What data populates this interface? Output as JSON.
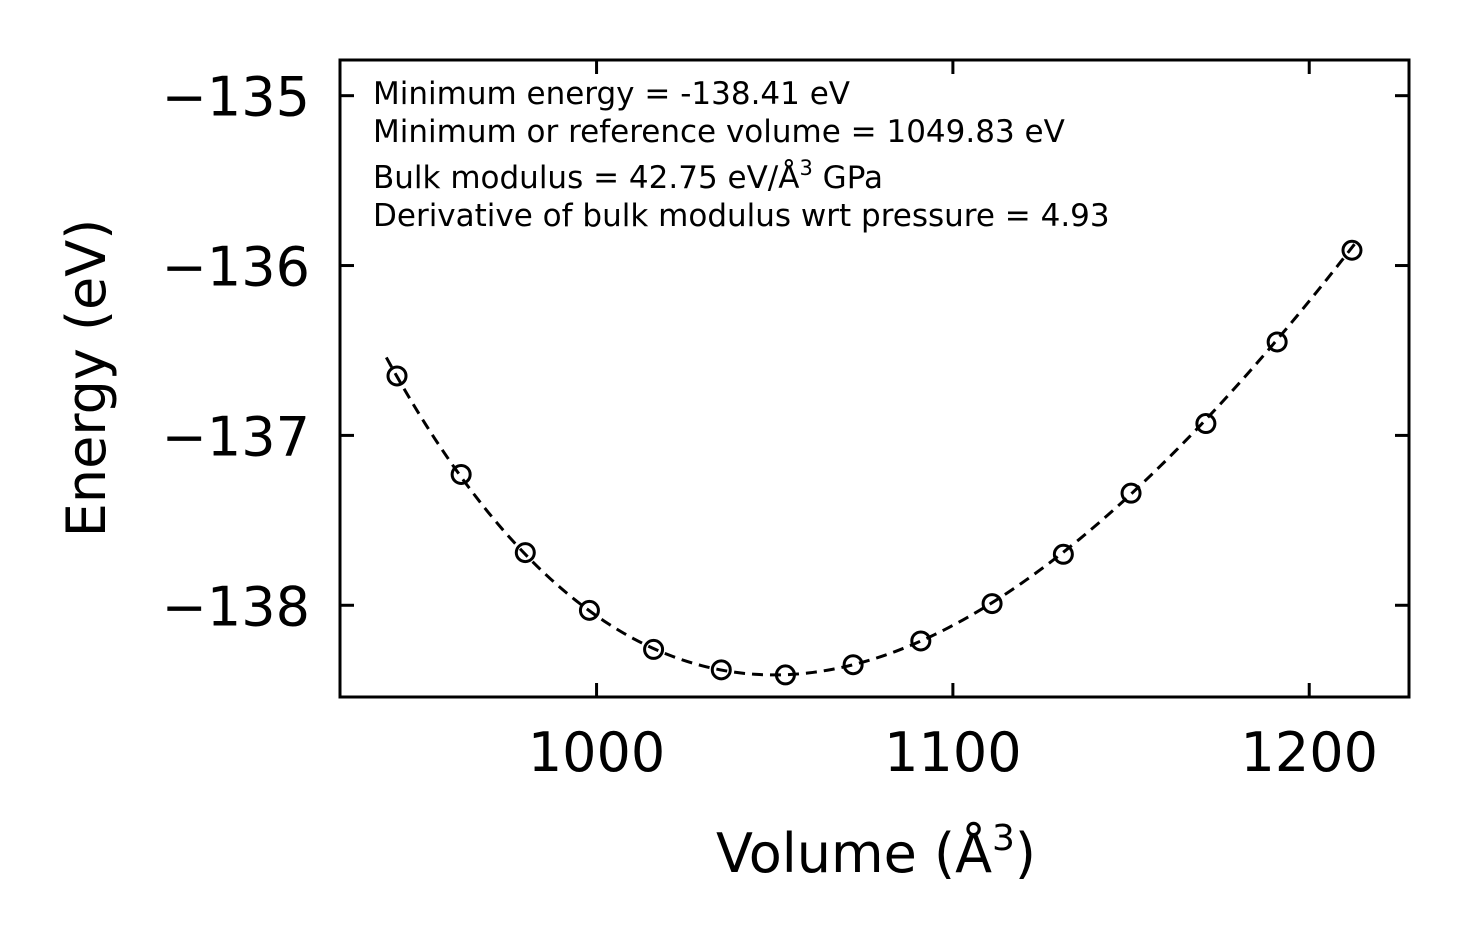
{
  "chart_data": {
    "type": "scatter",
    "title": "",
    "xlabel": "Volume (Å",
    "xlabel_sup": "3",
    "xlabel_end": ")",
    "ylabel": "Energy (eV)",
    "xlim": [
      928,
      1228
    ],
    "ylim": [
      -138.54,
      -134.79
    ],
    "xticks": [
      1000,
      1100,
      1200
    ],
    "xtick_labels": [
      "1000",
      "1100",
      "1200"
    ],
    "yticks": [
      -135,
      -136,
      -137,
      -138
    ],
    "ytick_labels": [
      "−135",
      "−136",
      "−137",
      "−138"
    ],
    "series": [
      {
        "name": "data",
        "marker": "open-circle",
        "x": [
          944,
          962,
          980,
          998,
          1016,
          1035,
          1053,
          1072,
          1091,
          1111,
          1131,
          1150,
          1171,
          1191,
          1212
        ],
        "y": [
          -136.65,
          -137.23,
          -137.69,
          -138.03,
          -138.26,
          -138.38,
          -138.41,
          -138.35,
          -138.21,
          -137.99,
          -137.7,
          -137.34,
          -136.93,
          -136.45,
          -135.91
        ]
      },
      {
        "name": "fit",
        "style": "dashed",
        "x_range": [
          941,
          1213
        ],
        "eos": {
          "E0": -138.41,
          "V0": 1049.83,
          "B0": 42.75,
          "Bp": 4.93
        }
      }
    ],
    "annotations": [
      "Minimum energy = -138.41 eV",
      "Minimum or reference volume = 1049.83 eV",
      "Bulk modulus = 42.75 eV/Å",
      "3",
      " GPa",
      "Derivative of bulk modulus wrt pressure = 4.93"
    ]
  }
}
